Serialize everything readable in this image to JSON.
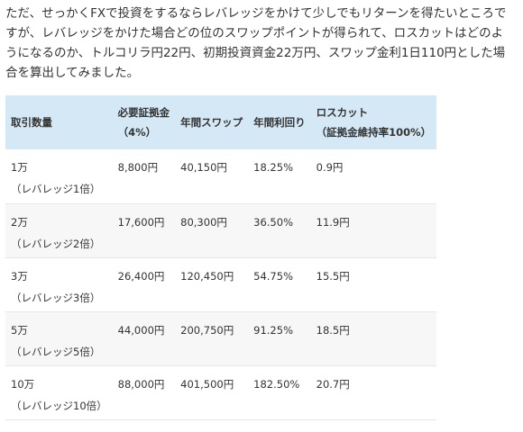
{
  "paragraph": "ただ、せっかくFXで投資をするならレバレッジをかけて少しでもリターンを得たいところですが、レバレッジをかけた場合どの位のスワップポイントが得られて、ロスカットはどのようになるのか、トルコリラ円22円、初期投資資金22万円、スワップ金利1日110円とした場合を算出してみました。",
  "table": {
    "header": [
      [
        "取引数量"
      ],
      [
        "必要証拠金",
        "（4%）"
      ],
      [
        "年間スワップ"
      ],
      [
        "年間利回り"
      ],
      [
        "ロスカット",
        "（証拠金維持率100%）"
      ]
    ],
    "rows": [
      [
        [
          "1万",
          "（レバレッジ1倍）"
        ],
        [
          "8,800円"
        ],
        [
          "40,150円"
        ],
        [
          "18.25%"
        ],
        [
          "0.9円"
        ]
      ],
      [
        [
          "2万",
          "（レバレッジ2倍）"
        ],
        [
          "17,600円"
        ],
        [
          "80,300円"
        ],
        [
          "36.50%"
        ],
        [
          "11.9円"
        ]
      ],
      [
        [
          "3万",
          "（レバレッジ3倍）"
        ],
        [
          "26,400円"
        ],
        [
          "120,450円"
        ],
        [
          "54.75%"
        ],
        [
          "15.5円"
        ]
      ],
      [
        [
          "5万",
          "（レバレッジ5倍）"
        ],
        [
          "44,000円"
        ],
        [
          "200,750円"
        ],
        [
          "91.25%"
        ],
        [
          "18.5円"
        ]
      ],
      [
        [
          "10万",
          "（レバレッジ10倍）"
        ],
        [
          "88,000円"
        ],
        [
          "401,500円"
        ],
        [
          "182.50%"
        ],
        [
          "20.7円"
        ]
      ]
    ]
  }
}
